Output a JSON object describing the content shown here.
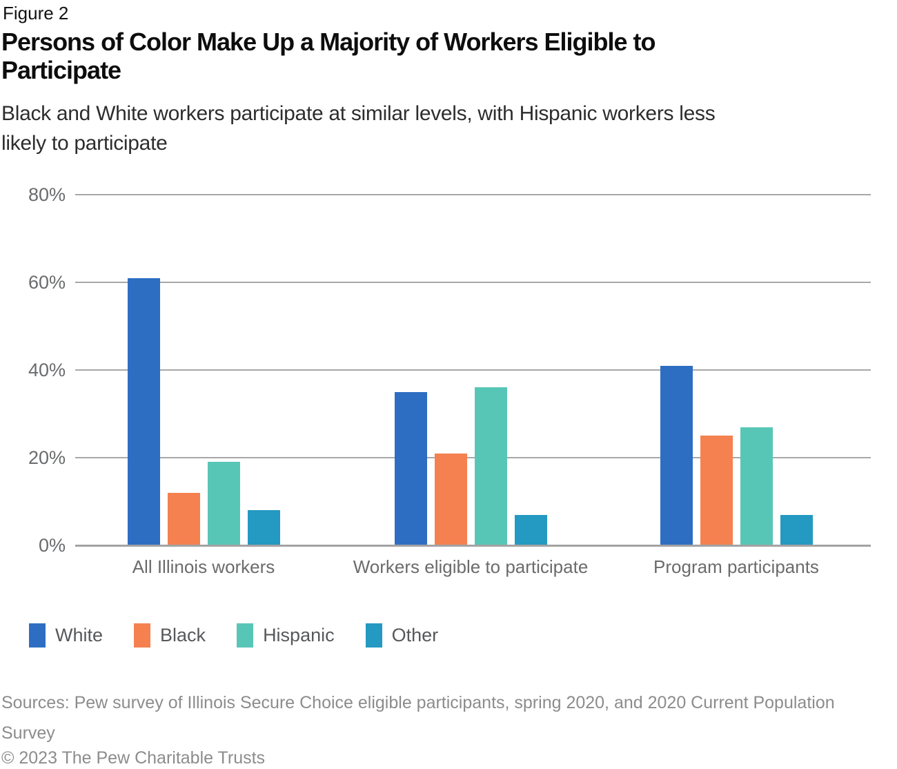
{
  "figure_label": "Figure 2",
  "title_lines": [
    "Persons of Color Make Up a Majority of Workers Eligible to",
    "Participate"
  ],
  "subtitle_lines": [
    "Black and White workers participate at similar levels, with Hispanic workers less",
    "likely to participate"
  ],
  "chart_data": {
    "type": "bar",
    "title": "Persons of Color Make Up a Majority of Workers Eligible to Participate",
    "subtitle": "Black and White workers participate at similar levels, with Hispanic workers less likely to participate",
    "categories": [
      "All Illinois workers",
      "Workers eligible to participate",
      "Program participants"
    ],
    "series": [
      {
        "name": "White",
        "color": "#2d6ec3",
        "values": [
          61,
          35,
          41
        ]
      },
      {
        "name": "Black",
        "color": "#f4814f",
        "values": [
          12,
          21,
          25
        ]
      },
      {
        "name": "Hispanic",
        "color": "#58c6b7",
        "values": [
          19,
          36,
          27
        ]
      },
      {
        "name": "Other",
        "color": "#2499c2",
        "values": [
          8,
          7,
          7
        ]
      }
    ],
    "xlabel": "",
    "ylabel": "",
    "ylim": [
      0,
      80
    ],
    "ytick_values": [
      0,
      20,
      40,
      60,
      80
    ],
    "ytick_labels": [
      "0%",
      "20%",
      "40%",
      "60%",
      "80%"
    ],
    "units": "percent",
    "grid": true,
    "legend_position": "bottom-left"
  },
  "footer": {
    "sources_lines": [
      "Sources: Pew survey of Illinois Secure Choice eligible participants, spring 2020, and 2020 Current Population",
      "Survey"
    ],
    "copyright": "© 2023 The Pew Charitable Trusts"
  },
  "colors": {
    "gridline": "#a7a7a7",
    "axis_line": "#a3a3a3",
    "tick_label": "#6a6b6d",
    "category_label": "#6b6b6b",
    "legend_label": "#57585a",
    "footer_text": "#8c8c8c"
  }
}
